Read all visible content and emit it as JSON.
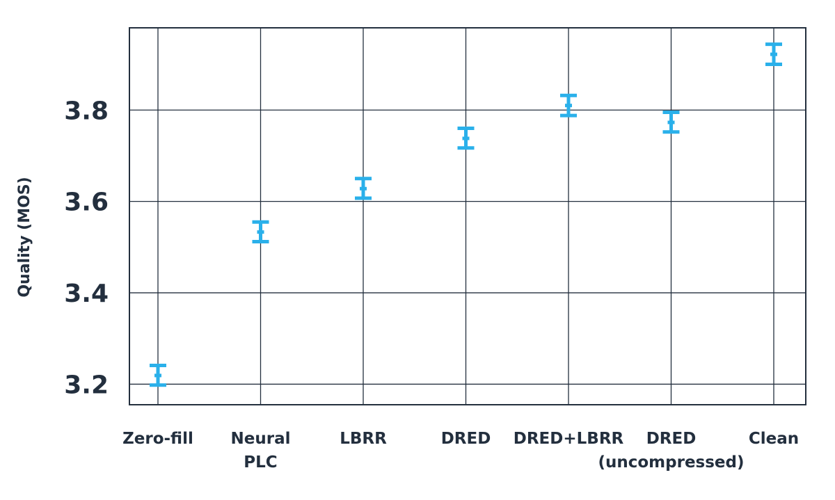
{
  "chart_data": {
    "type": "errorbar",
    "title": "",
    "xlabel": "",
    "ylabel": "Quality (MOS)",
    "ylim": [
      3.155,
      3.98
    ],
    "yticks": [
      "3.2",
      "3.4",
      "3.6",
      "3.8"
    ],
    "grid": true,
    "categories": [
      [
        "Zero-fill"
      ],
      [
        "Neural",
        "PLC"
      ],
      [
        "LBRR"
      ],
      [
        "DRED"
      ],
      [
        "DRED+LBRR"
      ],
      [
        "DRED",
        "(uncompressed)"
      ],
      [
        "Clean"
      ]
    ],
    "series": [
      {
        "values": [
          3.219,
          3.533,
          3.628,
          3.738,
          3.81,
          3.773,
          3.922
        ],
        "lower": [
          3.198,
          3.512,
          3.607,
          3.717,
          3.788,
          3.752,
          3.9
        ],
        "upper": [
          3.241,
          3.555,
          3.65,
          3.76,
          3.832,
          3.795,
          3.944
        ]
      }
    ],
    "colors": {
      "marker": "#2ab0ea",
      "axis": "#232f3e",
      "text": "#232f3e"
    }
  }
}
